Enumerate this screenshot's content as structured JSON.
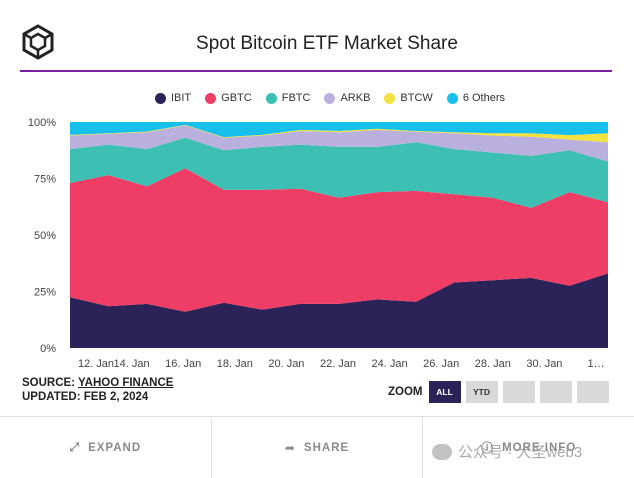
{
  "header": {
    "title": "Spot Bitcoin ETF Market Share"
  },
  "colors": {
    "accent_rule": "#7b1fa2",
    "zoom_active": "#2b2257"
  },
  "legend": [
    {
      "label": "IBIT",
      "color": "#2b2257"
    },
    {
      "label": "GBTC",
      "color": "#ef3e66"
    },
    {
      "label": "FBTC",
      "color": "#3dbfb3"
    },
    {
      "label": "ARKB",
      "color": "#b9b0dd"
    },
    {
      "label": "BTCW",
      "color": "#f2e13e"
    },
    {
      "label": "6 Others",
      "color": "#17c0ec"
    }
  ],
  "chart_data": {
    "type": "area",
    "stacking": "percent",
    "title": "Spot Bitcoin ETF Market Share",
    "xlabel": "",
    "ylabel": "",
    "ylim": [
      0,
      100
    ],
    "y_ticks": [
      "0%",
      "25%",
      "50%",
      "75%",
      "100%"
    ],
    "x_ticks": [
      "12. Jan",
      "14. Jan",
      "16. Jan",
      "18. Jan",
      "20. Jan",
      "22. Jan",
      "24. Jan",
      "26. Jan",
      "28. Jan",
      "30. Jan",
      "1…"
    ],
    "x": [
      "11. Jan",
      "12. Jan",
      "16. Jan",
      "17. Jan",
      "18. Jan",
      "19. Jan",
      "22. Jan",
      "23. Jan",
      "24. Jan",
      "25. Jan",
      "26. Jan",
      "29. Jan",
      "30. Jan",
      "31. Jan",
      "1. Feb"
    ],
    "series": [
      {
        "name": "IBIT",
        "values": [
          22.5,
          18.5,
          19.5,
          16,
          20,
          17,
          19.5,
          19.5,
          21.5,
          20.5,
          29,
          30,
          31,
          27.5,
          33
        ]
      },
      {
        "name": "GBTC",
        "values": [
          50.5,
          58,
          52,
          63.5,
          50,
          53,
          51,
          47,
          47.5,
          49,
          39,
          36.5,
          31,
          41.5,
          31.5
        ]
      },
      {
        "name": "FBTC",
        "values": [
          15,
          13.5,
          16.5,
          13.5,
          17.5,
          19,
          19.5,
          22.5,
          20,
          21.5,
          20,
          20,
          23,
          18.5,
          18
        ]
      },
      {
        "name": "ARKB",
        "values": [
          6,
          4.8,
          7.5,
          5.5,
          5.5,
          5,
          6,
          6.5,
          7.5,
          4.7,
          7,
          7.5,
          8.5,
          4.7,
          8.5
        ]
      },
      {
        "name": "BTCW",
        "values": [
          0.3,
          0.2,
          0.3,
          0.2,
          0.3,
          0.3,
          0.5,
          0.5,
          0.5,
          0.3,
          0.5,
          1,
          1.5,
          2,
          4
        ]
      },
      {
        "name": "6 Others",
        "values": [
          5.7,
          5,
          4.2,
          1.3,
          6.7,
          5.7,
          3.5,
          4,
          3,
          4,
          4.5,
          5,
          5,
          5.8,
          5
        ]
      }
    ]
  },
  "source": {
    "prefix": "SOURCE:",
    "link": "YAHOO FINANCE",
    "updated": "UPDATED: FEB 2, 2024"
  },
  "zoom": {
    "label": "ZOOM",
    "buttons": [
      "ALL",
      "YTD",
      "",
      "",
      ""
    ],
    "active": "ALL"
  },
  "footer": {
    "expand": "EXPAND",
    "share": "SHARE",
    "more_info": "MORE INFO"
  },
  "watermark": {
    "text": "公众号 · 大圣web3"
  }
}
